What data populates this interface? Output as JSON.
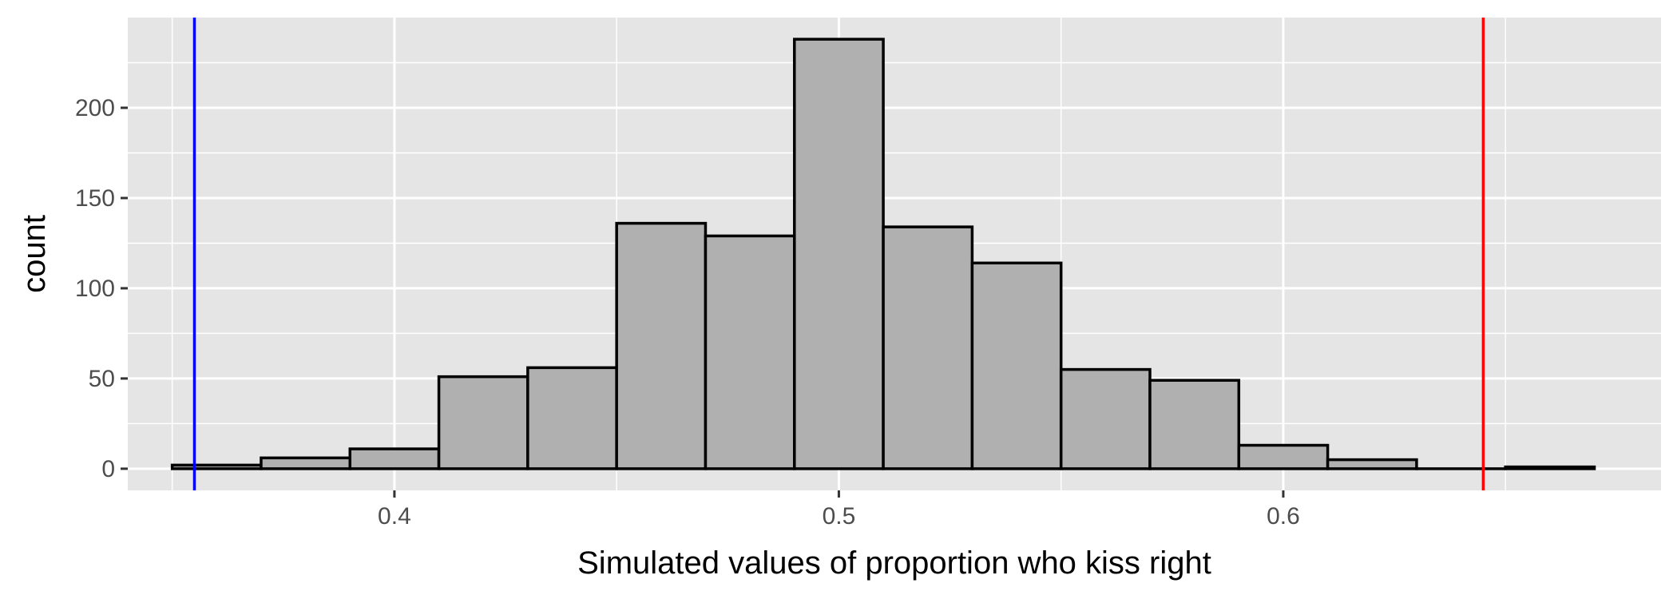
{
  "chart_data": {
    "type": "bar",
    "subtype": "histogram",
    "title": "",
    "xlabel": "Simulated values of proportion who kiss right",
    "ylabel": "count",
    "xlim": [
      0.34,
      0.685
    ],
    "ylim": [
      -12,
      250
    ],
    "x_ticks": [
      0.4,
      0.5,
      0.6
    ],
    "x_tick_labels": [
      "0.4",
      "0.5",
      "0.6"
    ],
    "y_ticks": [
      0,
      50,
      100,
      150,
      200
    ],
    "y_tick_labels": [
      "0",
      "50",
      "100",
      "150",
      "200"
    ],
    "bin_width": 0.02,
    "bins": [
      {
        "x0": 0.35,
        "x1": 0.37,
        "count": 2
      },
      {
        "x0": 0.37,
        "x1": 0.39,
        "count": 6
      },
      {
        "x0": 0.39,
        "x1": 0.41,
        "count": 11
      },
      {
        "x0": 0.41,
        "x1": 0.43,
        "count": 51
      },
      {
        "x0": 0.43,
        "x1": 0.45,
        "count": 56
      },
      {
        "x0": 0.45,
        "x1": 0.47,
        "count": 136
      },
      {
        "x0": 0.47,
        "x1": 0.49,
        "count": 129
      },
      {
        "x0": 0.49,
        "x1": 0.51,
        "count": 238
      },
      {
        "x0": 0.51,
        "x1": 0.53,
        "count": 134
      },
      {
        "x0": 0.53,
        "x1": 0.55,
        "count": 114
      },
      {
        "x0": 0.55,
        "x1": 0.57,
        "count": 55
      },
      {
        "x0": 0.57,
        "x1": 0.59,
        "count": 49
      },
      {
        "x0": 0.59,
        "x1": 0.61,
        "count": 13
      },
      {
        "x0": 0.61,
        "x1": 0.63,
        "count": 5
      },
      {
        "x0": 0.63,
        "x1": 0.65,
        "count": 0
      },
      {
        "x0": 0.65,
        "x1": 0.67,
        "count": 1
      }
    ],
    "reference_lines": [
      {
        "x": 0.355,
        "color": "#0000ff"
      },
      {
        "x": 0.645,
        "color": "#ff0000"
      }
    ],
    "grid": true,
    "legend": "none",
    "colors": {
      "panel_background": "#e5e5e5",
      "grid": "#ffffff",
      "bar_fill": "#b0b0b0",
      "bar_outline": "#000000"
    }
  }
}
